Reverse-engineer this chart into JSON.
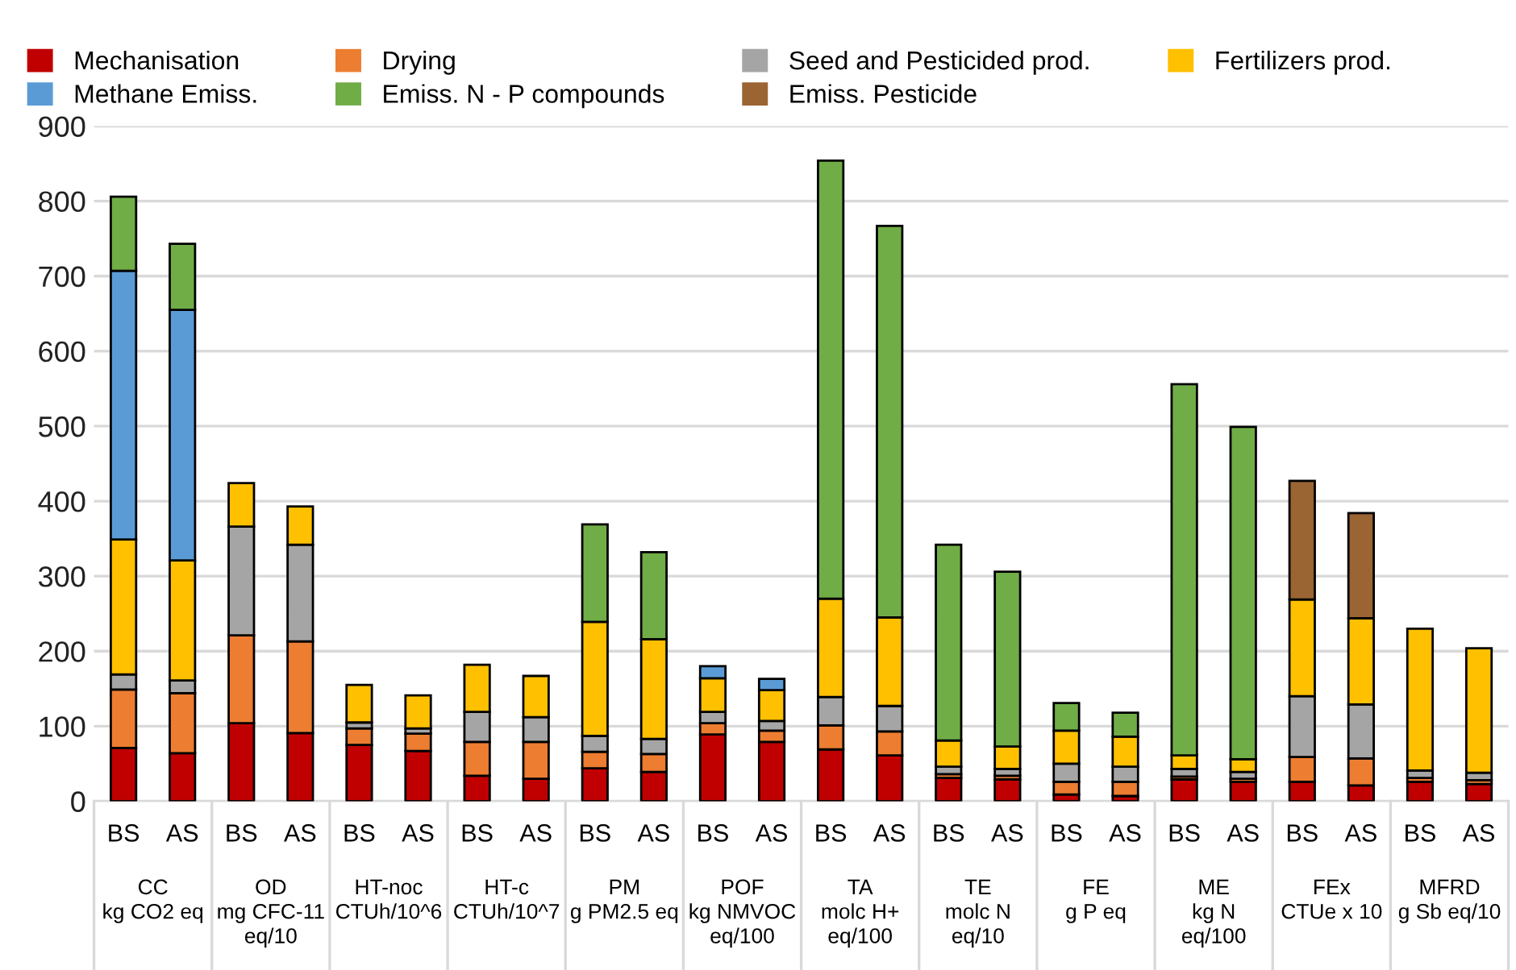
{
  "chart_data": {
    "type": "bar",
    "stacked": true,
    "categories": [
      "BS",
      "AS",
      "BS",
      "AS",
      "BS",
      "AS",
      "BS",
      "AS",
      "BS",
      "AS",
      "BS",
      "AS",
      "BS",
      "AS",
      "BS",
      "AS",
      "BS",
      "AS",
      "BS",
      "AS",
      "BS",
      "AS",
      "BS",
      "AS"
    ],
    "annotations": [
      "CC\nkg CO2 eq",
      "OD\nmg CFC-11\neq/10",
      "HT-noc\nCTUh/10^6",
      "HT-c\nCTUh/10^7",
      "PM\ng PM2.5 eq",
      "POF\nkg NMVOC\neq/100",
      "TA\nmolc H+\neq/100",
      "TE\nmolc N\neq/10",
      "FE\ng P eq",
      "ME\nkg N\neq/100",
      "FEx\nCTUe x 10",
      "MFRD\ng Sb eq/10"
    ],
    "series": [
      {
        "name": "Mechanisation",
        "color": "#c00000",
        "values": [
          71,
          64,
          104,
          91,
          75,
          67,
          34,
          30,
          44,
          39,
          89,
          79,
          69,
          61,
          31,
          29,
          9,
          7,
          29,
          26,
          26,
          21,
          26,
          23
        ]
      },
      {
        "name": "Drying",
        "color": "#ed7d31",
        "values": [
          78,
          80,
          117,
          122,
          22,
          23,
          45,
          49,
          22,
          24,
          15,
          15,
          32,
          32,
          5,
          5,
          17,
          19,
          4,
          4,
          33,
          36,
          5,
          5
        ]
      },
      {
        "name": "Seed and Pesticided prod.",
        "color": "#a5a5a5",
        "values": [
          20,
          17,
          145,
          129,
          8,
          7,
          40,
          33,
          21,
          20,
          15,
          13,
          38,
          34,
          10,
          9,
          24,
          20,
          10,
          9,
          81,
          72,
          10,
          10
        ]
      },
      {
        "name": "Fertilizers prod.",
        "color": "#ffc000",
        "values": [
          180,
          160,
          58,
          51,
          50,
          44,
          63,
          55,
          152,
          133,
          45,
          41,
          131,
          118,
          35,
          30,
          44,
          40,
          18,
          17,
          129,
          115,
          189,
          166
        ]
      },
      {
        "name": "Methane Emiss.",
        "color": "#5b9bd5",
        "values": [
          358,
          334,
          null,
          null,
          null,
          null,
          null,
          null,
          null,
          null,
          16,
          15,
          null,
          null,
          null,
          null,
          null,
          null,
          null,
          null,
          null,
          null,
          null,
          null
        ]
      },
      {
        "name": "Emiss. N - P compounds",
        "color": "#70ad47",
        "values": [
          99,
          88,
          null,
          null,
          null,
          null,
          null,
          null,
          130,
          116,
          null,
          null,
          584,
          522,
          261,
          233,
          37,
          32,
          495,
          443,
          null,
          null,
          null,
          null
        ]
      },
      {
        "name": "Emiss. Pesticide",
        "color": "#9a6433",
        "values": [
          null,
          null,
          null,
          null,
          null,
          null,
          null,
          null,
          null,
          null,
          null,
          null,
          null,
          null,
          null,
          null,
          null,
          null,
          null,
          null,
          158,
          140,
          null,
          null
        ]
      }
    ],
    "ylim": [
      0,
      900
    ],
    "yticks": [
      0,
      100,
      200,
      300,
      400,
      500,
      600,
      700,
      800,
      900
    ],
    "grid": "y",
    "legend": "top"
  }
}
